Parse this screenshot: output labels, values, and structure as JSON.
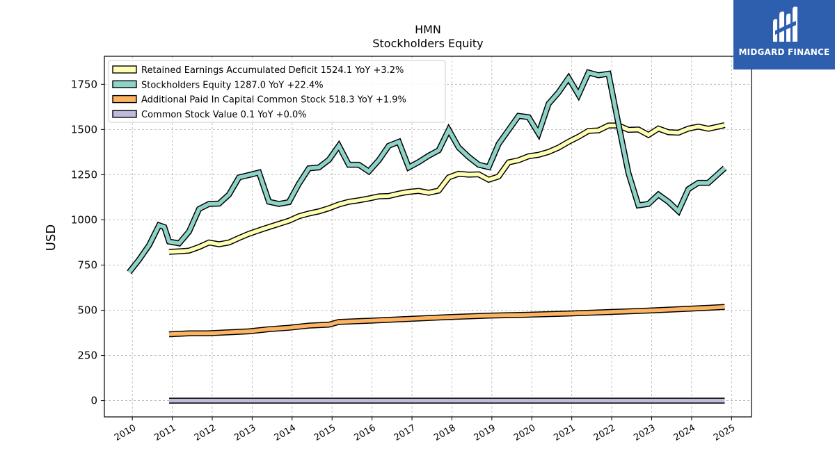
{
  "chart_data": {
    "type": "line",
    "title": "HMN",
    "subtitle": "Stockholders  Equity",
    "ylabel": "USD",
    "xlabel": "",
    "xlim": [
      2009.3,
      2025.5
    ],
    "ylim": [
      -90,
      1905
    ],
    "x_ticks": [
      2010,
      2011,
      2012,
      2013,
      2014,
      2015,
      2016,
      2017,
      2018,
      2019,
      2020,
      2021,
      2022,
      2023,
      2024,
      2025
    ],
    "y_ticks": [
      0,
      250,
      500,
      750,
      1000,
      1250,
      1500,
      1750
    ],
    "grid": true,
    "legend_position": "top-left",
    "series": [
      {
        "name": "Retained Earnings Accumulated Deficit",
        "legend": "Retained Earnings Accumulated Deficit  1524.1 YoY +3.2%",
        "color": "#ffffb3",
        "x": [
          2010.92,
          2011.17,
          2011.42,
          2011.67,
          2011.92,
          2012.17,
          2012.42,
          2012.67,
          2012.92,
          2013.17,
          2013.42,
          2013.67,
          2013.92,
          2014.17,
          2014.42,
          2014.67,
          2014.92,
          2015.17,
          2015.42,
          2015.67,
          2015.92,
          2016.17,
          2016.42,
          2016.67,
          2016.92,
          2017.17,
          2017.42,
          2017.67,
          2017.92,
          2018.17,
          2018.42,
          2018.67,
          2018.92,
          2019.17,
          2019.42,
          2019.67,
          2019.92,
          2020.17,
          2020.42,
          2020.67,
          2020.92,
          2021.17,
          2021.42,
          2021.67,
          2021.92,
          2022.17,
          2022.42,
          2022.67,
          2022.92,
          2023.17,
          2023.42,
          2023.67,
          2023.92,
          2024.17,
          2024.42,
          2024.67,
          2024.83
        ],
        "values": [
          823,
          826,
          830,
          850,
          875,
          865,
          875,
          900,
          923,
          942,
          960,
          978,
          995,
          1020,
          1035,
          1047,
          1064,
          1085,
          1100,
          1108,
          1118,
          1130,
          1132,
          1145,
          1155,
          1160,
          1150,
          1162,
          1235,
          1255,
          1250,
          1252,
          1222,
          1240,
          1318,
          1330,
          1352,
          1360,
          1376,
          1400,
          1432,
          1460,
          1492,
          1495,
          1522,
          1522,
          1498,
          1500,
          1470,
          1505,
          1485,
          1482,
          1505,
          1516,
          1504,
          1516,
          1524
        ]
      },
      {
        "name": "Stockholders Equity",
        "legend": "Stockholders Equity  1287.0 YoY +22.4%",
        "color": "#8dd3c7",
        "x": [
          2009.92,
          2010.17,
          2010.42,
          2010.67,
          2010.8,
          2010.92,
          2011.17,
          2011.42,
          2011.67,
          2011.92,
          2012.17,
          2012.42,
          2012.67,
          2012.92,
          2013.17,
          2013.42,
          2013.67,
          2013.92,
          2014.17,
          2014.42,
          2014.67,
          2014.92,
          2015.17,
          2015.42,
          2015.67,
          2015.92,
          2016.17,
          2016.42,
          2016.67,
          2016.92,
          2017.17,
          2017.42,
          2017.67,
          2017.92,
          2018.17,
          2018.42,
          2018.67,
          2018.92,
          2019.17,
          2019.42,
          2019.67,
          2019.92,
          2020.17,
          2020.42,
          2020.67,
          2020.92,
          2021.17,
          2021.42,
          2021.67,
          2021.92,
          2022.17,
          2022.42,
          2022.67,
          2022.92,
          2023.17,
          2023.42,
          2023.67,
          2023.92,
          2024.17,
          2024.42,
          2024.67,
          2024.83
        ],
        "values": [
          710,
          780,
          860,
          970,
          960,
          880,
          870,
          935,
          1060,
          1088,
          1090,
          1140,
          1235,
          1248,
          1262,
          1100,
          1088,
          1098,
          1200,
          1285,
          1290,
          1332,
          1410,
          1305,
          1305,
          1268,
          1330,
          1410,
          1432,
          1290,
          1320,
          1355,
          1385,
          1498,
          1400,
          1348,
          1305,
          1292,
          1420,
          1498,
          1575,
          1568,
          1478,
          1642,
          1705,
          1785,
          1692,
          1815,
          1800,
          1808,
          1530,
          1258,
          1080,
          1088,
          1140,
          1100,
          1048,
          1170,
          1205,
          1205,
          1255,
          1287
        ]
      },
      {
        "name": "Additional Paid In Capital Common Stock",
        "legend": "Additional Paid In Capital Common Stock  518.3 YoY +1.9%",
        "color": "#fdb462",
        "x": [
          2010.92,
          2011.42,
          2011.92,
          2012.42,
          2012.92,
          2013.42,
          2013.92,
          2014.42,
          2014.92,
          2015.17,
          2015.92,
          2016.92,
          2017.92,
          2018.92,
          2019.92,
          2020.92,
          2021.92,
          2022.92,
          2023.92,
          2024.83
        ],
        "values": [
          367,
          372,
          373,
          378,
          383,
          395,
          403,
          415,
          420,
          435,
          442,
          452,
          462,
          470,
          475,
          482,
          490,
          498,
          508,
          518
        ]
      },
      {
        "name": "Common Stock Value",
        "legend": "Common Stock Value  0.1 YoY +0.0%",
        "color": "#bebada",
        "x": [
          2010.92,
          2024.83
        ],
        "values": [
          0.1,
          0.1
        ]
      }
    ]
  },
  "logo": {
    "text": "MIDGARD FINANCE"
  }
}
